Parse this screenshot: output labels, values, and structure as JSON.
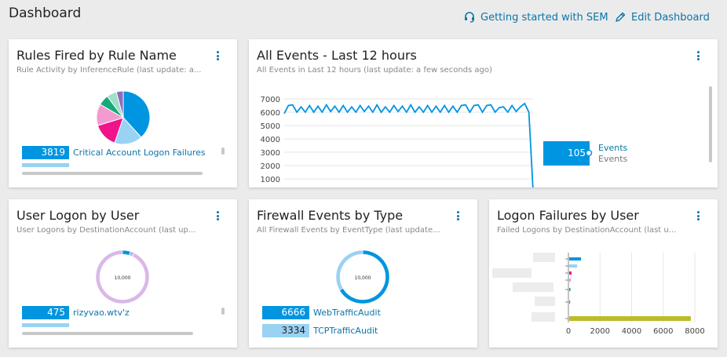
{
  "header": {
    "title": "Dashboard",
    "getting_started": "Getting started with SEM",
    "edit_dashboard": "Edit Dashboard",
    "accent": "#0b74a8"
  },
  "cards": {
    "rules": {
      "title": "Rules Fired by Rule Name",
      "subtitle": "Rule Activity by InferenceRule (last update: a...",
      "legend": [
        {
          "value": "3819",
          "label": "Critical Account Logon Failures"
        }
      ]
    },
    "events": {
      "title": "All Events - Last 12 hours",
      "subtitle": "All Events in Last 12 hours (last update: a few seconds ago)",
      "legend_value": "105",
      "legend_name": "Events",
      "legend_sub": "Events"
    },
    "user_logon": {
      "title": "User Logon by User",
      "subtitle": "User Logons by DestinationAccount (last up...",
      "center_label": "10,000",
      "legend": [
        {
          "value": "475",
          "label": "rizyvao.wtv'z"
        }
      ]
    },
    "firewall": {
      "title": "Firewall Events by Type",
      "subtitle": "All Firewall Events by EventType (last update...",
      "center_label": "10,000",
      "legend": [
        {
          "value": "6666",
          "label": "WebTrafficAudit"
        },
        {
          "value": "3334",
          "label": "TCPTrafficAudit"
        }
      ]
    },
    "logon_failures": {
      "title": "Logon Failures by User",
      "subtitle": "Failed Logons by DestinationAccount (last u..."
    }
  },
  "chart_data": [
    {
      "type": "pie",
      "title": "Rules Fired by Rule Name",
      "values": [
        3819,
        1700,
        1500,
        1300,
        650,
        600,
        420
      ],
      "colors": [
        "#0095e0",
        "#99d2f2",
        "#f0138b",
        "#f39bd0",
        "#19a979",
        "#9fe0c6",
        "#8e6bbf"
      ]
    },
    {
      "type": "line",
      "title": "All Events - Last 12 hours",
      "y_ticks": [
        "7000",
        "6000",
        "5000",
        "4000",
        "3000",
        "2000",
        "1000"
      ],
      "ylim": [
        0,
        7000
      ],
      "values": [
        5900,
        6500,
        6550,
        6000,
        6400,
        6000,
        6500,
        6000,
        6450,
        6000,
        6550,
        6050,
        6450,
        6000,
        6500,
        6000,
        6400,
        6000,
        6500,
        6050,
        6450,
        6000,
        6550,
        6000,
        6400,
        6000,
        6500,
        6050,
        6450,
        6000,
        6550,
        6000,
        6400,
        6000,
        6500,
        6000,
        6450,
        6000,
        6500,
        6000,
        6450,
        6000,
        6500,
        6550,
        6000,
        6500,
        6550,
        6000,
        6500,
        6550,
        6000,
        6350,
        6400,
        6000,
        6500,
        6050,
        6400,
        6650,
        6000,
        105
      ],
      "color": "#0095e0"
    },
    {
      "type": "pie",
      "title": "User Logon by User",
      "values": [
        475,
        80,
        60,
        50,
        40,
        30,
        9265
      ],
      "colors": [
        "#0095e0",
        "#99d2f2",
        "#f0138b",
        "#19a979",
        "#8e6bbf",
        "#555555",
        "#d9b8e8"
      ]
    },
    {
      "type": "pie",
      "title": "Firewall Events by Type",
      "categories": [
        "WebTrafficAudit",
        "TCPTrafficAudit"
      ],
      "values": [
        6666,
        3334
      ],
      "colors": [
        "#0095e0",
        "#99d2f2"
      ]
    },
    {
      "type": "bar",
      "title": "Logon Failures by User",
      "x_ticks": [
        "0",
        "2000",
        "4000",
        "6000",
        "8000"
      ],
      "xlim": [
        0,
        8000
      ],
      "values": [
        750,
        500,
        150,
        100,
        80,
        60,
        7700
      ],
      "colors": [
        "#0095e0",
        "#99d2f2",
        "#f0138b",
        "#f39bd0",
        "#19a979",
        "#8e6bbf",
        "#bcbc2a"
      ]
    }
  ]
}
